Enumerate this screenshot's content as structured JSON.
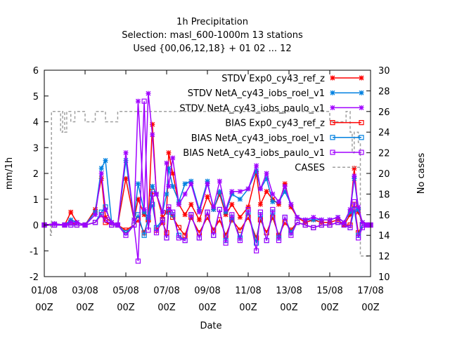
{
  "chart_data": {
    "type": "line",
    "title_lines": [
      "1h Precipitation",
      "Selection: masl_600-1000m     13 stations",
      "Used {00,06,12,18} + 01 02 ... 12"
    ],
    "xlabel": "Date",
    "ylabel": "mm/1h",
    "y2label": "No cases",
    "ylim": [
      -2,
      6
    ],
    "y2lim": [
      10,
      30
    ],
    "xlim": [
      0,
      16
    ],
    "x_tick_values": [
      0,
      2,
      4,
      6,
      8,
      10,
      12,
      14,
      16
    ],
    "x_tick_labels_line1": [
      "01/08",
      "03/08",
      "05/08",
      "07/08",
      "09/08",
      "11/08",
      "13/08",
      "15/08",
      "17/08"
    ],
    "x_tick_labels_line2": [
      "00Z",
      "00Z",
      "00Z",
      "00Z",
      "00Z",
      "00Z",
      "00Z",
      "00Z",
      "00Z"
    ],
    "y_ticks": [
      -2,
      -1,
      0,
      1,
      2,
      3,
      4,
      5,
      6
    ],
    "y2_ticks": [
      10,
      12,
      14,
      16,
      18,
      20,
      22,
      24,
      26,
      28,
      30
    ],
    "grid": false,
    "legend_position": "top-right",
    "series": [
      {
        "name": "STDV Exp0_cy43_ref_z",
        "axis": "y",
        "color": "#ff0000",
        "marker": "x-star",
        "x": [
          0.0,
          0.5,
          1.0,
          1.3,
          1.6,
          2.0,
          2.5,
          2.8,
          3.0,
          3.3,
          3.6,
          4.0,
          4.4,
          4.6,
          4.9,
          5.1,
          5.3,
          5.5,
          5.8,
          6.0,
          6.1,
          6.3,
          6.6,
          6.9,
          7.2,
          7.6,
          8.0,
          8.3,
          8.6,
          8.9,
          9.2,
          9.6,
          10.0,
          10.4,
          10.6,
          10.9,
          11.2,
          11.5,
          11.8,
          12.1,
          12.4,
          12.8,
          13.2,
          13.6,
          14.0,
          14.4,
          14.7,
          15.0,
          15.2,
          15.4,
          15.6,
          15.8,
          16.0
        ],
        "y": [
          0.0,
          0.05,
          0.0,
          0.5,
          0.1,
          0.0,
          0.6,
          1.8,
          0.3,
          0.1,
          0.0,
          1.8,
          0.2,
          1.0,
          0.4,
          0.2,
          3.9,
          1.2,
          0.3,
          0.5,
          2.8,
          2.0,
          0.8,
          0.4,
          0.8,
          0.2,
          1.1,
          0.6,
          1.2,
          0.4,
          0.8,
          0.3,
          0.7,
          2.0,
          0.8,
          1.3,
          1.0,
          0.8,
          1.6,
          0.7,
          0.3,
          0.1,
          0.2,
          0.1,
          0.1,
          0.2,
          0.0,
          0.4,
          2.2,
          0.5,
          0.1,
          0.0,
          0.0
        ]
      },
      {
        "name": "STDV NetA_cy43_iobs_roel_v1",
        "axis": "y",
        "color": "#0080e0",
        "marker": "x-star",
        "x": [
          0.0,
          0.5,
          1.0,
          1.3,
          1.6,
          2.0,
          2.5,
          2.8,
          3.0,
          3.3,
          3.6,
          4.0,
          4.4,
          4.6,
          4.9,
          5.1,
          5.3,
          5.5,
          5.8,
          6.0,
          6.1,
          6.3,
          6.6,
          6.9,
          7.2,
          7.6,
          8.0,
          8.3,
          8.6,
          8.9,
          9.2,
          9.6,
          10.0,
          10.4,
          10.6,
          10.9,
          11.2,
          11.5,
          11.8,
          12.1,
          12.4,
          12.8,
          13.2,
          13.6,
          14.0,
          14.4,
          14.7,
          15.0,
          15.2,
          15.4,
          15.6,
          15.8,
          16.0
        ],
        "y": [
          0.0,
          0.05,
          0.0,
          0.2,
          0.1,
          0.0,
          0.5,
          2.2,
          2.5,
          0.1,
          0.0,
          2.5,
          0.2,
          1.6,
          0.5,
          0.3,
          1.5,
          1.2,
          0.5,
          1.2,
          2.2,
          1.5,
          0.9,
          1.6,
          1.7,
          0.6,
          1.7,
          0.6,
          1.3,
          0.5,
          1.2,
          1.0,
          1.4,
          2.1,
          1.4,
          1.8,
          0.9,
          0.9,
          1.3,
          0.8,
          0.3,
          0.2,
          0.2,
          0.2,
          0.2,
          0.3,
          0.1,
          0.5,
          1.8,
          0.6,
          0.1,
          0.0,
          0.0
        ]
      },
      {
        "name": "STDV NetA_cy43_iobs_paulo_v1",
        "axis": "y",
        "color": "#a000ff",
        "marker": "x-star",
        "x": [
          0.0,
          0.5,
          1.0,
          1.3,
          1.6,
          2.0,
          2.5,
          2.8,
          3.0,
          3.3,
          3.6,
          4.0,
          4.4,
          4.6,
          4.9,
          5.1,
          5.3,
          5.5,
          5.8,
          6.0,
          6.1,
          6.3,
          6.6,
          6.9,
          7.2,
          7.6,
          8.0,
          8.3,
          8.6,
          8.9,
          9.2,
          9.6,
          10.0,
          10.4,
          10.6,
          10.9,
          11.2,
          11.5,
          11.8,
          12.1,
          12.4,
          12.8,
          13.2,
          13.6,
          14.0,
          14.4,
          14.7,
          15.0,
          15.2,
          15.4,
          15.6,
          15.8,
          16.0
        ],
        "y": [
          0.0,
          0.05,
          0.0,
          0.1,
          0.1,
          0.0,
          0.4,
          2.0,
          0.6,
          0.1,
          0.0,
          2.8,
          0.2,
          4.8,
          0.6,
          5.1,
          3.5,
          1.2,
          0.5,
          2.4,
          1.5,
          2.6,
          0.8,
          1.2,
          1.6,
          0.5,
          1.6,
          0.7,
          1.7,
          0.6,
          1.3,
          1.3,
          1.4,
          2.3,
          1.4,
          2.0,
          1.2,
          0.9,
          1.5,
          0.8,
          0.3,
          0.2,
          0.3,
          0.2,
          0.2,
          0.3,
          0.1,
          0.6,
          1.9,
          0.7,
          0.1,
          0.0,
          0.0
        ]
      },
      {
        "name": "BIAS Exp0_cy43_ref_z",
        "axis": "y",
        "color": "#ff0000",
        "marker": "square",
        "x": [
          0.0,
          0.5,
          1.0,
          1.3,
          1.6,
          2.0,
          2.5,
          2.8,
          3.0,
          3.3,
          3.6,
          4.0,
          4.4,
          4.6,
          4.9,
          5.1,
          5.3,
          5.5,
          5.8,
          6.0,
          6.1,
          6.3,
          6.6,
          6.9,
          7.2,
          7.6,
          8.0,
          8.3,
          8.6,
          8.9,
          9.2,
          9.6,
          10.0,
          10.4,
          10.6,
          10.9,
          11.2,
          11.5,
          11.8,
          12.1,
          12.4,
          12.8,
          13.2,
          13.6,
          14.0,
          14.4,
          14.7,
          15.0,
          15.2,
          15.4,
          15.6,
          15.8,
          16.0
        ],
        "y": [
          0.0,
          0.0,
          0.0,
          0.1,
          0.0,
          0.0,
          0.1,
          0.4,
          0.1,
          0.0,
          0.0,
          -0.2,
          0.0,
          0.2,
          -0.3,
          0.2,
          1.3,
          -0.2,
          0.1,
          -0.3,
          0.6,
          0.3,
          -0.1,
          -0.4,
          0.3,
          -0.3,
          0.3,
          -0.2,
          0.2,
          -0.4,
          0.2,
          -0.2,
          0.3,
          -0.5,
          0.2,
          -0.3,
          0.3,
          -0.4,
          0.1,
          -0.2,
          0.1,
          0.0,
          -0.1,
          0.0,
          0.0,
          0.1,
          0.0,
          0.0,
          0.8,
          -0.3,
          0.0,
          0.0,
          0.0
        ]
      },
      {
        "name": "BIAS NetA_cy43_iobs_roel_v1",
        "axis": "y",
        "color": "#0080e0",
        "marker": "square",
        "x": [
          0.0,
          0.5,
          1.0,
          1.3,
          1.6,
          2.0,
          2.5,
          2.8,
          3.0,
          3.3,
          3.6,
          4.0,
          4.4,
          4.6,
          4.9,
          5.1,
          5.3,
          5.5,
          5.8,
          6.0,
          6.1,
          6.3,
          6.6,
          6.9,
          7.2,
          7.6,
          8.0,
          8.3,
          8.6,
          8.9,
          9.2,
          9.6,
          10.0,
          10.4,
          10.6,
          10.9,
          11.2,
          11.5,
          11.8,
          12.1,
          12.4,
          12.8,
          13.2,
          13.6,
          14.0,
          14.4,
          14.7,
          15.0,
          15.2,
          15.4,
          15.6,
          15.8,
          16.0
        ],
        "y": [
          0.0,
          0.0,
          0.0,
          0.0,
          0.0,
          0.0,
          0.1,
          0.5,
          0.7,
          0.0,
          0.0,
          -0.3,
          0.0,
          0.4,
          -0.4,
          0.3,
          0.8,
          -0.1,
          0.2,
          -0.5,
          0.5,
          0.4,
          -0.4,
          -0.6,
          0.4,
          -0.5,
          0.5,
          -0.4,
          0.6,
          -0.6,
          0.3,
          -0.5,
          0.5,
          -0.7,
          0.4,
          -0.6,
          0.5,
          -0.5,
          0.3,
          -0.3,
          0.1,
          0.0,
          -0.1,
          0.0,
          0.0,
          0.1,
          0.0,
          -0.1,
          0.6,
          -0.4,
          0.0,
          0.0,
          0.0
        ]
      },
      {
        "name": "BIAS NetA_cy43_iobs_paulo_v1",
        "axis": "y",
        "color": "#a000ff",
        "marker": "square",
        "x": [
          0.0,
          0.5,
          1.0,
          1.3,
          1.6,
          2.0,
          2.5,
          2.8,
          3.0,
          3.3,
          3.6,
          4.0,
          4.4,
          4.6,
          4.9,
          5.1,
          5.3,
          5.5,
          5.8,
          6.0,
          6.1,
          6.3,
          6.6,
          6.9,
          7.2,
          7.6,
          8.0,
          8.3,
          8.6,
          8.9,
          9.2,
          9.6,
          10.0,
          10.4,
          10.6,
          10.9,
          11.2,
          11.5,
          11.8,
          12.1,
          12.4,
          12.8,
          13.2,
          13.6,
          14.0,
          14.4,
          14.7,
          15.0,
          15.2,
          15.4,
          15.6,
          15.8,
          16.0
        ],
        "y": [
          0.0,
          0.0,
          0.0,
          0.0,
          0.0,
          0.0,
          0.1,
          0.4,
          0.2,
          0.0,
          0.0,
          -0.4,
          0.0,
          -1.4,
          4.8,
          -0.2,
          1.2,
          -0.3,
          0.2,
          -0.5,
          0.7,
          0.5,
          -0.5,
          -0.6,
          0.4,
          -0.5,
          0.5,
          -0.4,
          0.6,
          -0.7,
          0.4,
          -0.6,
          0.6,
          -1.0,
          0.5,
          -0.6,
          0.6,
          -0.6,
          0.3,
          -0.4,
          0.1,
          0.0,
          -0.1,
          0.0,
          0.0,
          0.1,
          0.0,
          -0.1,
          0.9,
          -0.5,
          -0.1,
          0.0,
          0.0
        ]
      },
      {
        "name": "CASES",
        "axis": "y2",
        "color": "#a0a0a0",
        "marker": "none",
        "dashed": true,
        "step": true,
        "x": [
          0.0,
          0.3,
          0.3,
          0.35,
          0.35,
          0.8,
          0.8,
          0.9,
          0.9,
          1.0,
          1.0,
          1.1,
          1.1,
          1.3,
          1.3,
          1.5,
          1.5,
          2.0,
          2.0,
          2.5,
          2.5,
          3.0,
          3.0,
          3.6,
          3.6,
          4.0,
          4.0,
          14.0,
          14.0,
          14.8,
          14.8,
          15.0,
          15.0,
          15.1,
          15.1,
          15.2,
          15.2,
          15.4,
          15.4,
          15.5,
          15.5,
          16.0
        ],
        "y": [
          15,
          15,
          14,
          14,
          26,
          26,
          24,
          24,
          26,
          26,
          24,
          24,
          26,
          26,
          25,
          25,
          26,
          26,
          25,
          25,
          26,
          26,
          25,
          25,
          26,
          26,
          26,
          26,
          25,
          25,
          26,
          26,
          24,
          24,
          22,
          22,
          24,
          24,
          23,
          23,
          12,
          12
        ]
      }
    ]
  }
}
